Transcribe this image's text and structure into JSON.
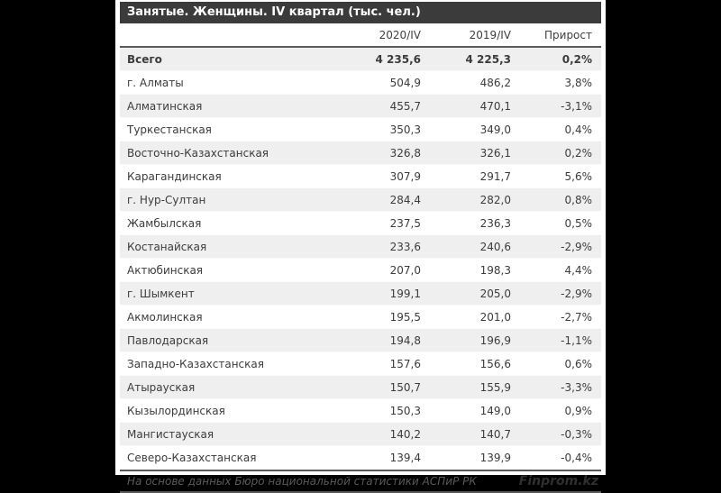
{
  "chart_data": {
    "type": "table",
    "title": "Занятые. Женщины. IV квартал (тыс. чел.)",
    "columns": [
      "",
      "2020/IV",
      "2019/IV",
      "Прирост"
    ],
    "rows": [
      {
        "region": "Всего",
        "v2020": "4 235,6",
        "v2019": "4 225,3",
        "growth": "0,2%",
        "bold": true
      },
      {
        "region": "г. Алматы",
        "v2020": "504,9",
        "v2019": "486,2",
        "growth": "3,8%"
      },
      {
        "region": "Алматинская",
        "v2020": "455,7",
        "v2019": "470,1",
        "growth": "-3,1%"
      },
      {
        "region": "Туркестанская",
        "v2020": "350,3",
        "v2019": "349,0",
        "growth": "0,4%"
      },
      {
        "region": "Восточно-Казахстанская",
        "v2020": "326,8",
        "v2019": "326,1",
        "growth": "0,2%"
      },
      {
        "region": "Карагандинская",
        "v2020": "307,9",
        "v2019": "291,7",
        "growth": "5,6%"
      },
      {
        "region": "г. Нур-Султан",
        "v2020": "284,4",
        "v2019": "282,0",
        "growth": "0,8%"
      },
      {
        "region": "Жамбылская",
        "v2020": "237,5",
        "v2019": "236,3",
        "growth": "0,5%"
      },
      {
        "region": "Костанайская",
        "v2020": "233,6",
        "v2019": "240,6",
        "growth": "-2,9%"
      },
      {
        "region": "Актюбинская",
        "v2020": "207,0",
        "v2019": "198,3",
        "growth": "4,4%"
      },
      {
        "region": "г. Шымкент",
        "v2020": "199,1",
        "v2019": "205,0",
        "growth": "-2,9%"
      },
      {
        "region": "Акмолинская",
        "v2020": "195,5",
        "v2019": "201,0",
        "growth": "-2,7%"
      },
      {
        "region": "Павлодарская",
        "v2020": "194,8",
        "v2019": "196,9",
        "growth": "-1,1%"
      },
      {
        "region": "Западно-Казахстанская",
        "v2020": "157,6",
        "v2019": "156,6",
        "growth": "0,6%"
      },
      {
        "region": "Атырауская",
        "v2020": "150,7",
        "v2019": "155,9",
        "growth": "-3,3%"
      },
      {
        "region": "Кызылординская",
        "v2020": "150,3",
        "v2019": "149,0",
        "growth": "0,9%"
      },
      {
        "region": "Мангистауская",
        "v2020": "140,2",
        "v2019": "140,7",
        "growth": "-0,3%"
      },
      {
        "region": "Северо-Казахстанская",
        "v2020": "139,4",
        "v2019": "139,9",
        "growth": "-0,4%"
      }
    ]
  },
  "footer": {
    "source": "На основе данных Бюро национальной статистики АСПиР РК",
    "brand": "Finprom.kz"
  },
  "colors": {
    "page-bg": "#000000",
    "title-bar-bg": "#3b3b3b",
    "stripe": "#efefef",
    "separator": "#5a5a5a",
    "text": "#3c3c3c"
  }
}
